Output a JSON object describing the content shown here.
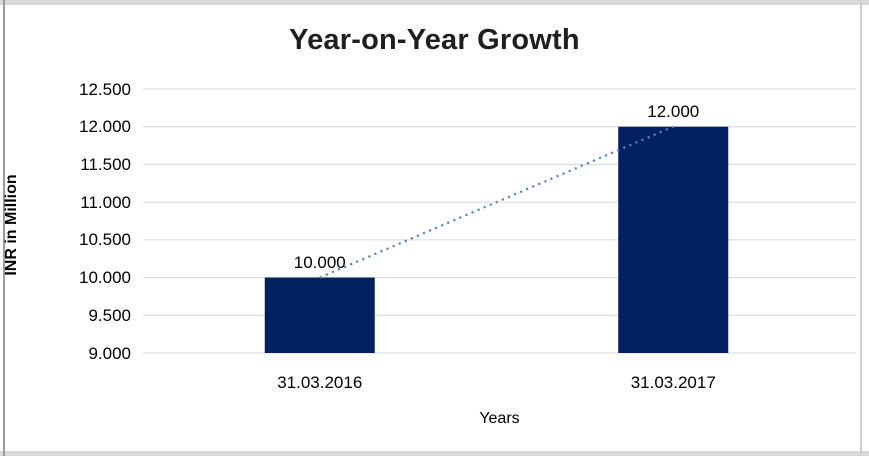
{
  "frame": {
    "band_color": "#d9d9d9",
    "left_edge_color": "#9c9c9c",
    "right_edge_color": "#d0d0d0"
  },
  "chart_data": {
    "type": "bar",
    "title": "Year-on-Year Growth",
    "xlabel": "Years",
    "ylabel": "INR in Million",
    "categories": [
      "31.03.2016",
      "31.03.2017"
    ],
    "values": [
      10000,
      12000
    ],
    "value_labels": [
      "10.000",
      "12.000"
    ],
    "series": [
      {
        "name": "INR in Million",
        "values": [
          10000,
          12000
        ]
      }
    ],
    "ylim": [
      9000,
      12500
    ],
    "ytick_step": 500,
    "ytick_labels": [
      "12.500",
      "12.000",
      "11.500",
      "11.000",
      "10.500",
      "10.000",
      "9.500",
      "9.000"
    ],
    "grid": true,
    "legend": "none",
    "bar_color": "#002060",
    "gridline_color": "#d6d6d6",
    "trendline": {
      "style": "dotted",
      "color": "#4f86c8",
      "from_value": 10000,
      "to_value": 12000
    }
  }
}
